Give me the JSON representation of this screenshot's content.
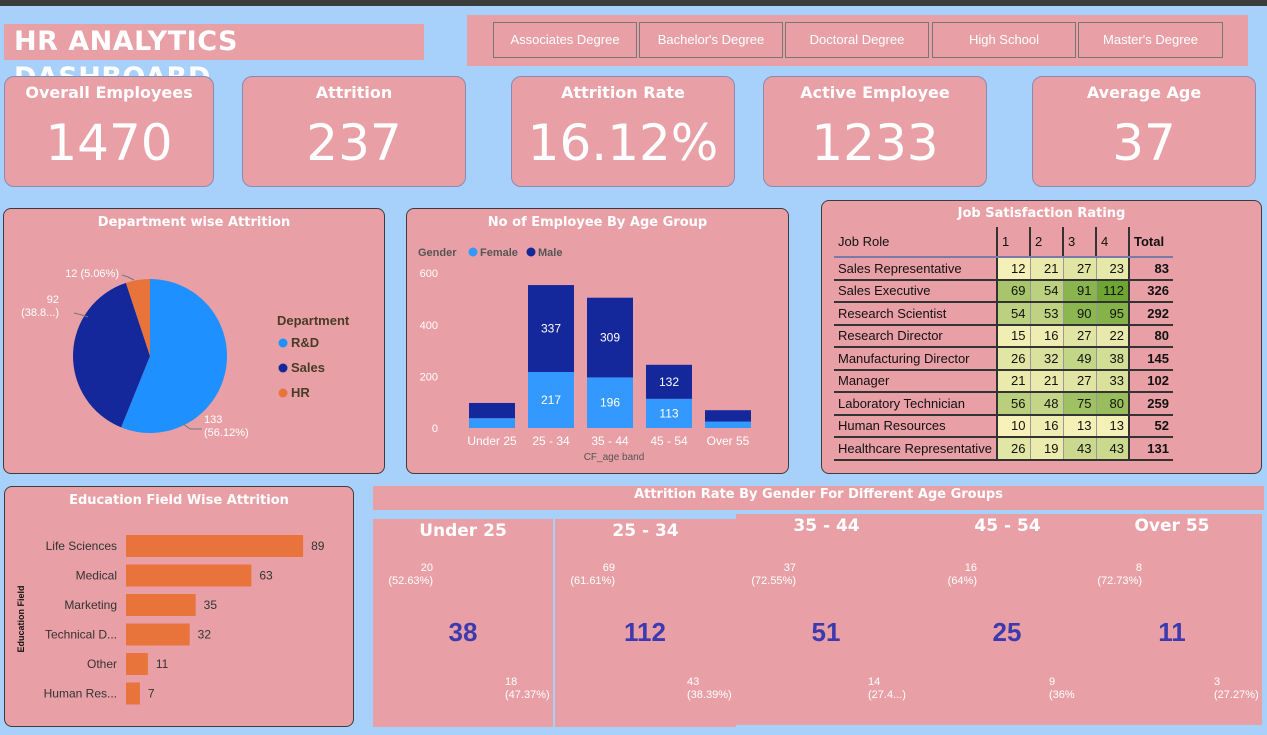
{
  "title": "HR ANALYTICS DASHBOARD",
  "slicer": [
    "Associates Degree",
    "Bachelor's Degree",
    "Doctoral Degree",
    "High School",
    "Master's Degree"
  ],
  "kpis": [
    {
      "label": "Overall Employees",
      "value": "1470"
    },
    {
      "label": "Attrition",
      "value": "237"
    },
    {
      "label": "Attrition Rate",
      "value": "16.12%"
    },
    {
      "label": "Active Employee",
      "value": "1233"
    },
    {
      "label": "Average Age",
      "value": "37"
    }
  ],
  "colors": {
    "background": "#a7d1fb",
    "panel": "#e8a0a6",
    "rd": "#1e90ff",
    "sales": "#14279b",
    "hr": "#e8743b",
    "female": "#3399ff",
    "male": "#14279b",
    "donut_dark": "#a64a26",
    "donut_light": "#3ea2fa",
    "donut_num": "#3d3ab0",
    "bar_orange": "#e8743b"
  },
  "chart_data": [
    {
      "type": "pie",
      "title": "Department wise Attrition",
      "legend_title": "Department",
      "legend_position": "right",
      "slices": [
        {
          "name": "R&D",
          "value": 133,
          "label": "133\n(56.12%)"
        },
        {
          "name": "Sales",
          "value": 92,
          "label": "92\n(38.8...)"
        },
        {
          "name": "HR",
          "value": 12,
          "label": "12 (5.06%)"
        }
      ]
    },
    {
      "type": "bar",
      "stacked": true,
      "title": "No of Employee By Age Group",
      "legend_title": "Gender",
      "legend_position": "top-left",
      "xlabel": "CF_age band",
      "categories": [
        "Under 25",
        "25 - 34",
        "35 - 44",
        "45 - 54",
        "Over 55"
      ],
      "series": [
        {
          "name": "Female",
          "values": [
            38,
            217,
            196,
            113,
            25
          ]
        },
        {
          "name": "Male",
          "values": [
            59,
            337,
            309,
            132,
            44
          ]
        }
      ],
      "data_labels": {
        "Female": [
          "",
          "217",
          "196",
          "113",
          ""
        ],
        "Male": [
          "",
          "337",
          "309",
          "132",
          ""
        ]
      },
      "yticks": [
        "0",
        "200",
        "400",
        "600"
      ],
      "ylim": [
        0,
        620
      ]
    },
    {
      "type": "table",
      "title": "Job Satisfaction Rating",
      "columns": [
        "Job Role",
        "1",
        "2",
        "3",
        "4",
        "Total"
      ],
      "rows": [
        [
          "Sales Representative",
          "12",
          "21",
          "27",
          "23",
          "83"
        ],
        [
          "Sales Executive",
          "69",
          "54",
          "91",
          "112",
          "326"
        ],
        [
          "Research Scientist",
          "54",
          "53",
          "90",
          "95",
          "292"
        ],
        [
          "Research Director",
          "15",
          "16",
          "27",
          "22",
          "80"
        ],
        [
          "Manufacturing Director",
          "26",
          "32",
          "49",
          "38",
          "145"
        ],
        [
          "Manager",
          "21",
          "21",
          "27",
          "33",
          "102"
        ],
        [
          "Laboratory Technician",
          "56",
          "48",
          "75",
          "80",
          "259"
        ],
        [
          "Human Resources",
          "10",
          "16",
          "13",
          "13",
          "52"
        ],
        [
          "Healthcare Representative",
          "26",
          "19",
          "43",
          "43",
          "131"
        ]
      ]
    },
    {
      "type": "bar",
      "orientation": "horizontal",
      "title": "Education Field Wise Attrition",
      "ylabel": "Education Field",
      "categories": [
        "Life Sciences",
        "Medical",
        "Marketing",
        "Technical D...",
        "Other",
        "Human Res..."
      ],
      "values": [
        89,
        63,
        35,
        32,
        11,
        7
      ]
    },
    {
      "type": "pie",
      "donut": true,
      "title": "Attrition Rate By Gender For Different Age Groups",
      "groups": [
        {
          "name": "Under 25",
          "total": "38",
          "male": 20,
          "female": 18,
          "male_label": "20\n(52.63%)",
          "female_label": "18\n(47.37%)"
        },
        {
          "name": "25 - 34",
          "total": "112",
          "male": 69,
          "female": 43,
          "male_label": "69\n(61.61%)",
          "female_label": "43\n(38.39%)"
        },
        {
          "name": "35 - 44",
          "total": "51",
          "male": 37,
          "female": 14,
          "male_label": "37\n(72.55%)",
          "female_label": "14\n(27.4...)"
        },
        {
          "name": "45 - 54",
          "total": "25",
          "male": 16,
          "female": 9,
          "male_label": "16\n(64%)",
          "female_label": "9\n(36%"
        },
        {
          "name": "Over 55",
          "total": "11",
          "male": 8,
          "female": 3,
          "male_label": "8\n(72.73%)",
          "female_label": "3\n(27.27%)"
        }
      ]
    }
  ]
}
